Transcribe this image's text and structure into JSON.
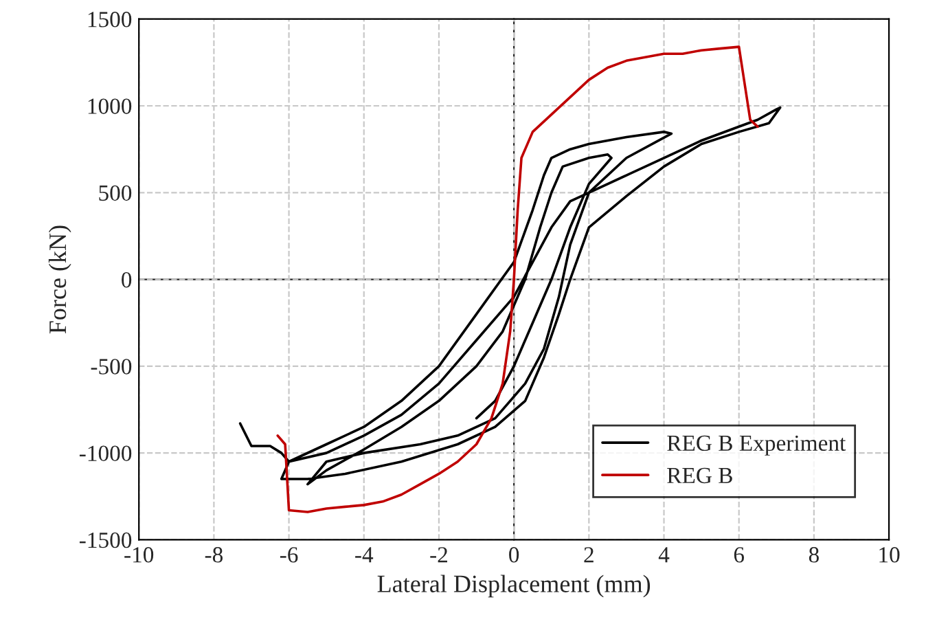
{
  "chart_data": {
    "type": "line",
    "xlabel": "Lateral Displacement (mm)",
    "ylabel": "Force (kN)",
    "xlim": [
      -10,
      10
    ],
    "xticks": [
      -10,
      -8,
      -6,
      -4,
      -2,
      0,
      2,
      4,
      6,
      8,
      10
    ],
    "ylim": [
      -1500,
      1500
    ],
    "yticks": [
      -1500,
      -1000,
      -500,
      0,
      500,
      1000,
      1500
    ],
    "grid": true,
    "legend": "bottom right",
    "marker": "none",
    "line_style": "solid",
    "series": [
      {
        "name": "REG B Experiment",
        "color": "#000000",
        "x": [
          -7.3,
          -7,
          -6.5,
          -6.2,
          -6,
          -5,
          -4,
          -3,
          -2,
          -1,
          0,
          0.5,
          1,
          1.5,
          2,
          3,
          4,
          5,
          6,
          6.5,
          7,
          7.1,
          6.8,
          6,
          5,
          4,
          3,
          2,
          1.5,
          1.2,
          0.8,
          0.3,
          -0.5,
          -1.5,
          -3,
          -4.5,
          -5.5,
          -6.2,
          -6,
          -5,
          -4,
          -3,
          -2,
          -1,
          0,
          0.5,
          0.8,
          1,
          1.5,
          2,
          3,
          4,
          4.2,
          3,
          2,
          1.5,
          1.2,
          0.8,
          0.3,
          -0.5,
          -1.5,
          -2.5,
          -4,
          -5,
          -5.5,
          -5,
          -4,
          -3,
          -2,
          -1,
          -0.3,
          0.3,
          0.7,
          1,
          1.3,
          2,
          2.5,
          2.6,
          2,
          1.5,
          1,
          0.5,
          0,
          -0.5,
          -1
        ],
        "values": [
          -830,
          -960,
          -960,
          -1000,
          -1050,
          -1000,
          -900,
          -780,
          -600,
          -350,
          -100,
          100,
          300,
          450,
          500,
          600,
          700,
          800,
          880,
          920,
          980,
          990,
          900,
          850,
          780,
          650,
          480,
          300,
          0,
          -200,
          -450,
          -700,
          -850,
          -950,
          -1050,
          -1120,
          -1150,
          -1150,
          -1050,
          -950,
          -850,
          -700,
          -500,
          -200,
          100,
          400,
          600,
          700,
          750,
          780,
          820,
          850,
          840,
          700,
          500,
          200,
          -100,
          -400,
          -600,
          -800,
          -900,
          -950,
          -1000,
          -1050,
          -1180,
          -1100,
          -980,
          -850,
          -700,
          -500,
          -300,
          0,
          300,
          500,
          650,
          700,
          720,
          700,
          550,
          300,
          0,
          -250,
          -500,
          -700,
          -800
        ]
      },
      {
        "name": "REG B",
        "color": "#c00000",
        "x": [
          -6.3,
          -6.1,
          -6.0,
          -5.5,
          -5,
          -4.5,
          -4,
          -3.5,
          -3,
          -2.5,
          -2,
          -1.5,
          -1,
          -0.6,
          -0.3,
          -0.1,
          0,
          0.1,
          0.2,
          0.5,
          1,
          1.5,
          2,
          2.5,
          3,
          3.5,
          4,
          4.5,
          5,
          5.5,
          6,
          6.1,
          6.3,
          6.5
        ],
        "values": [
          -900,
          -950,
          -1330,
          -1340,
          -1320,
          -1310,
          -1300,
          -1280,
          -1240,
          -1180,
          -1120,
          -1050,
          -950,
          -800,
          -600,
          -300,
          0,
          400,
          700,
          850,
          950,
          1050,
          1150,
          1220,
          1260,
          1280,
          1300,
          1300,
          1320,
          1330,
          1340,
          1200,
          920,
          880
        ]
      }
    ]
  }
}
